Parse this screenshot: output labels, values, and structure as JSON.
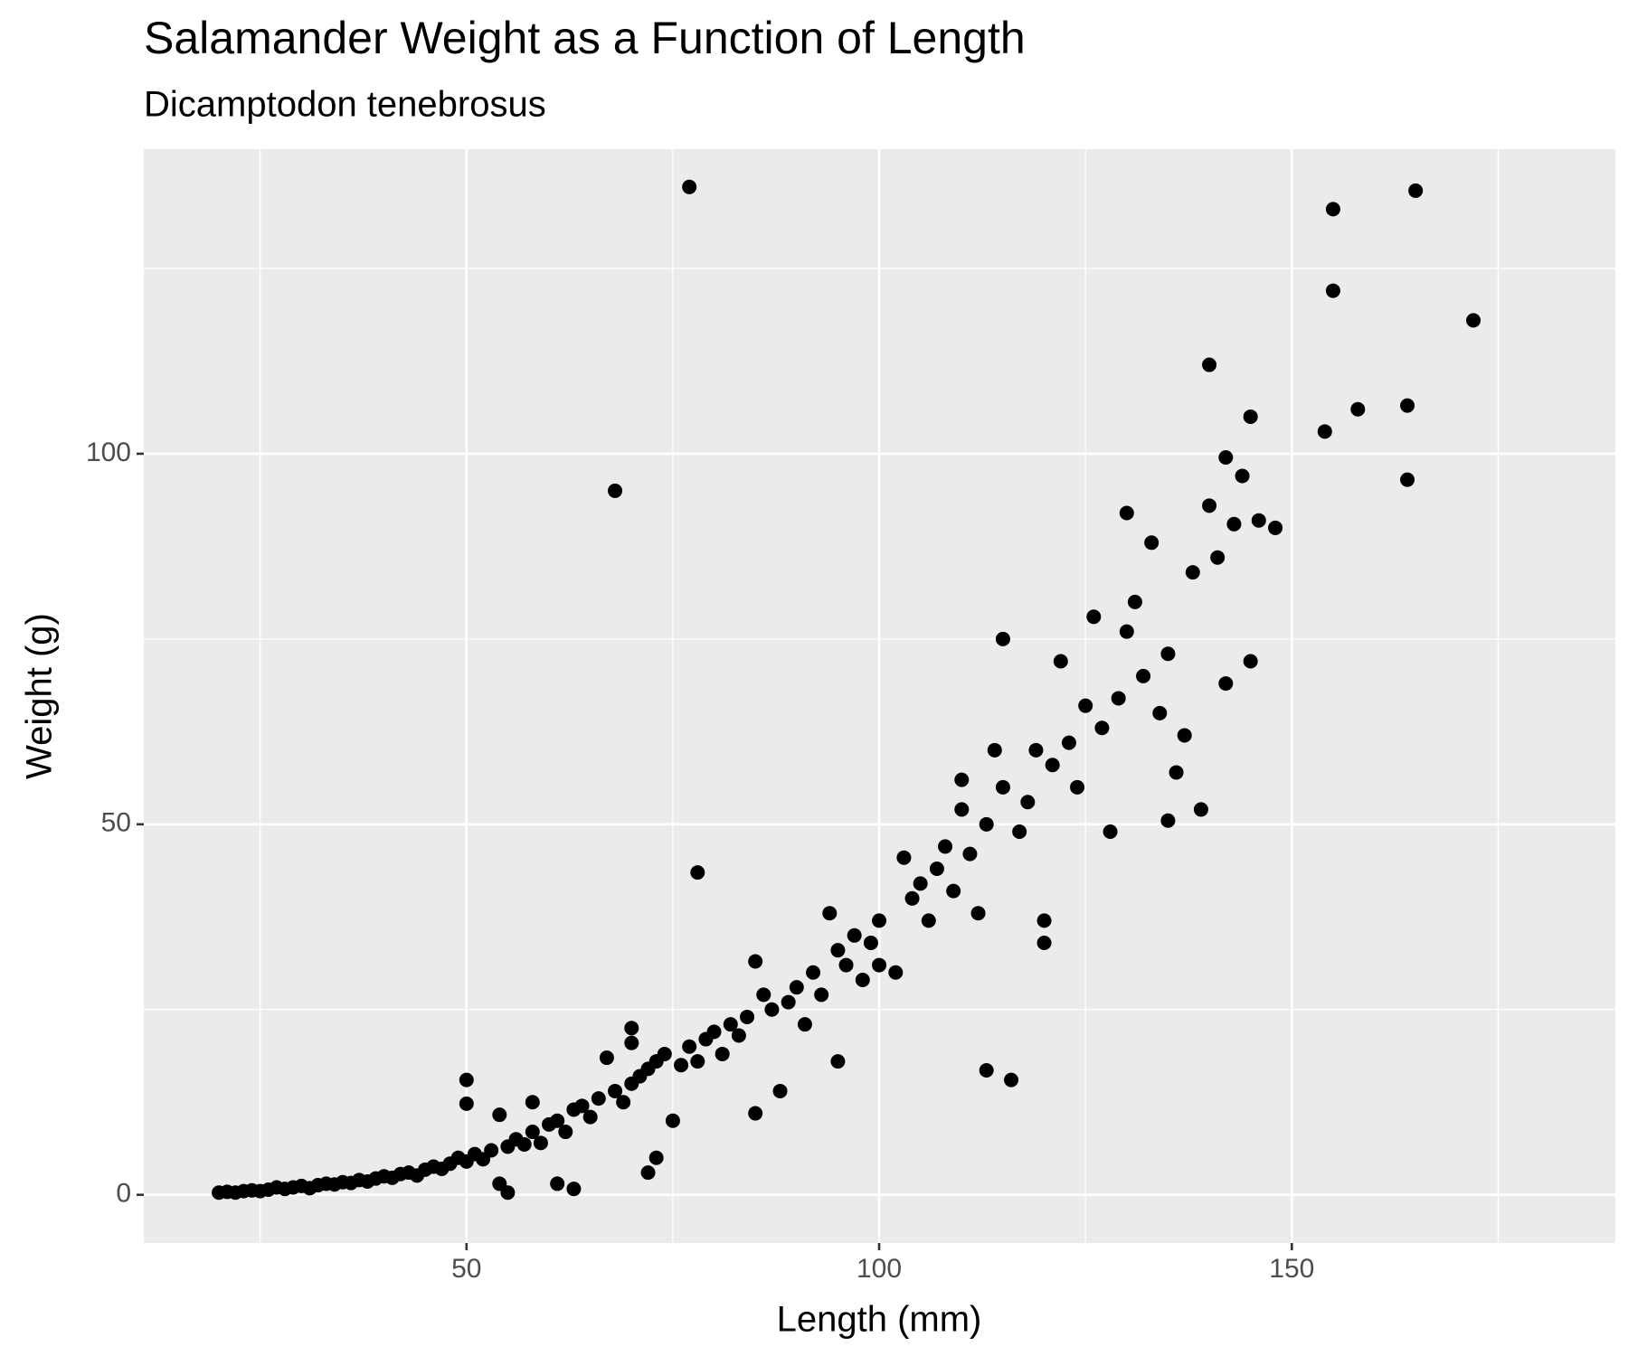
{
  "chart_data": {
    "type": "scatter",
    "title": "Salamander Weight as a Function of Length",
    "subtitle": "Dicamptodon tenebrosus",
    "xlabel": "Length (mm)",
    "ylabel": "Weight (g)",
    "color": "#000000",
    "background": "#ebebeb",
    "grid": true,
    "xlim": [
      10.9,
      189.2
    ],
    "ylim": [
      -6.5,
      141.1
    ],
    "xticks": [
      50,
      100,
      150
    ],
    "yticks": [
      0,
      50,
      100
    ],
    "xminor": [
      25,
      75,
      125,
      175
    ],
    "yminor": [
      25,
      75,
      125
    ],
    "x": [
      20,
      21,
      22,
      23,
      24,
      25,
      26,
      27,
      28,
      29,
      30,
      31,
      32,
      33,
      34,
      35,
      36,
      37,
      38,
      39,
      40,
      41,
      42,
      43,
      44,
      45,
      46,
      47,
      48,
      49,
      50,
      50,
      50,
      51,
      52,
      53,
      54,
      54,
      55,
      55,
      56,
      57,
      58,
      58,
      59,
      60,
      61,
      61,
      62,
      63,
      63,
      64,
      65,
      66,
      67,
      68,
      68,
      69,
      70,
      70,
      70,
      71,
      72,
      72,
      73,
      73,
      74,
      75,
      76,
      77,
      77,
      78,
      78,
      79,
      80,
      81,
      82,
      83,
      84,
      85,
      85,
      86,
      87,
      88,
      89,
      90,
      91,
      92,
      93,
      94,
      95,
      95,
      96,
      97,
      98,
      99,
      100,
      100,
      102,
      103,
      104,
      105,
      106,
      107,
      108,
      109,
      110,
      110,
      111,
      112,
      113,
      113,
      114,
      115,
      115,
      116,
      117,
      118,
      119,
      120,
      120,
      121,
      122,
      123,
      124,
      125,
      126,
      127,
      128,
      129,
      130,
      130,
      131,
      132,
      133,
      134,
      135,
      135,
      136,
      137,
      138,
      139,
      140,
      140,
      141,
      142,
      142,
      143,
      144,
      145,
      145,
      146,
      148,
      154,
      155,
      155,
      158,
      164,
      164,
      165,
      172
    ],
    "values": [
      0.3,
      0.4,
      0.3,
      0.5,
      0.6,
      0.5,
      0.7,
      1.0,
      0.8,
      1.0,
      1.2,
      0.9,
      1.3,
      1.5,
      1.4,
      1.7,
      1.6,
      2.0,
      1.8,
      2.2,
      2.5,
      2.3,
      2.8,
      3.0,
      2.6,
      3.4,
      3.8,
      3.5,
      4.2,
      5.0,
      15.5,
      12.3,
      4.5,
      5.5,
      4.8,
      6.0,
      10.8,
      1.5,
      0.3,
      6.5,
      7.5,
      6.8,
      12.5,
      8.5,
      7.0,
      9.5,
      10.0,
      1.5,
      8.5,
      0.8,
      11.5,
      12,
      10.5,
      13,
      18.5,
      95,
      14,
      12.5,
      20.5,
      22.5,
      15,
      16,
      3,
      17,
      5,
      18,
      19,
      10,
      17.5,
      136,
      20,
      43.5,
      18,
      21,
      22,
      19,
      23,
      21.5,
      24,
      11,
      31.5,
      27,
      25,
      14,
      26,
      28,
      23,
      30,
      27,
      38,
      33,
      18,
      31,
      35,
      29,
      34,
      37,
      31,
      30,
      45.5,
      40,
      42,
      37,
      44,
      47,
      41,
      52,
      56,
      46,
      38,
      16.8,
      50,
      60,
      75,
      55,
      15.5,
      49,
      53,
      60,
      34,
      37,
      58,
      72,
      61,
      55,
      66,
      78,
      63,
      49,
      67,
      92,
      76,
      80,
      70,
      88,
      65,
      50.5,
      73,
      57,
      62,
      84,
      52,
      112,
      93,
      86,
      69,
      99.5,
      90.5,
      97,
      105,
      72,
      91,
      90,
      103,
      133,
      122,
      106,
      96.5,
      106.5,
      135.5,
      118
    ]
  }
}
